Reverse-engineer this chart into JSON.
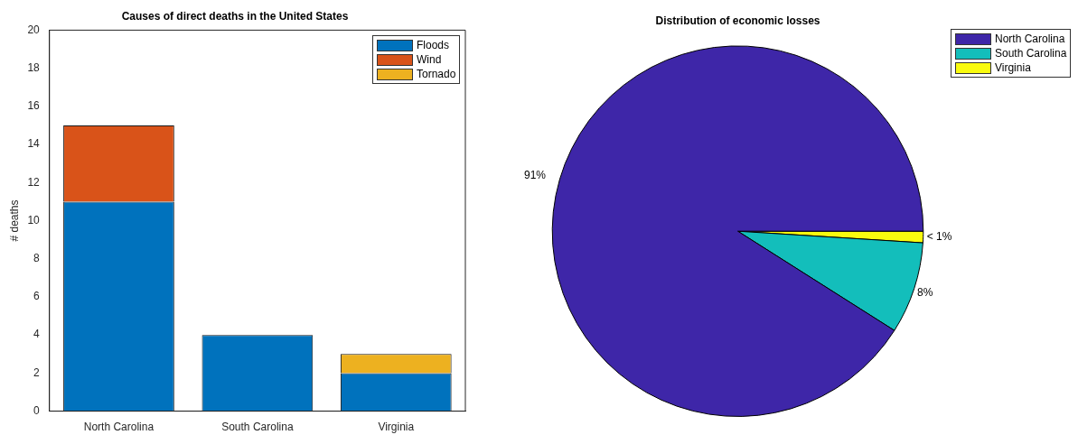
{
  "chart_data": [
    {
      "type": "bar",
      "title": "Causes of direct deaths in the United States",
      "ylabel": "# deaths",
      "categories": [
        "North Carolina",
        "South Carolina",
        "Virginia"
      ],
      "stacked": true,
      "ylim": [
        0,
        20
      ],
      "yticks": [
        0,
        2,
        4,
        6,
        8,
        10,
        12,
        14,
        16,
        18,
        20
      ],
      "grid": false,
      "legend": "top right",
      "series": [
        {
          "name": "Floods",
          "color": "#0072bd",
          "values": [
            11,
            4,
            2
          ]
        },
        {
          "name": "Wind",
          "color": "#d95319",
          "values": [
            4,
            0,
            0
          ]
        },
        {
          "name": "Tornado",
          "color": "#edb120",
          "values": [
            0,
            0,
            1
          ]
        }
      ]
    },
    {
      "type": "pie",
      "title": "Distribution of economic losses",
      "categories": [
        "North Carolina",
        "South Carolina",
        "Virginia"
      ],
      "values": [
        91,
        8,
        1
      ],
      "colors": [
        "#3e26a8",
        "#13bebb",
        "#f9fb0e"
      ],
      "value_labels": [
        "91%",
        "8%",
        "< 1%"
      ],
      "legend": "top right"
    }
  ]
}
